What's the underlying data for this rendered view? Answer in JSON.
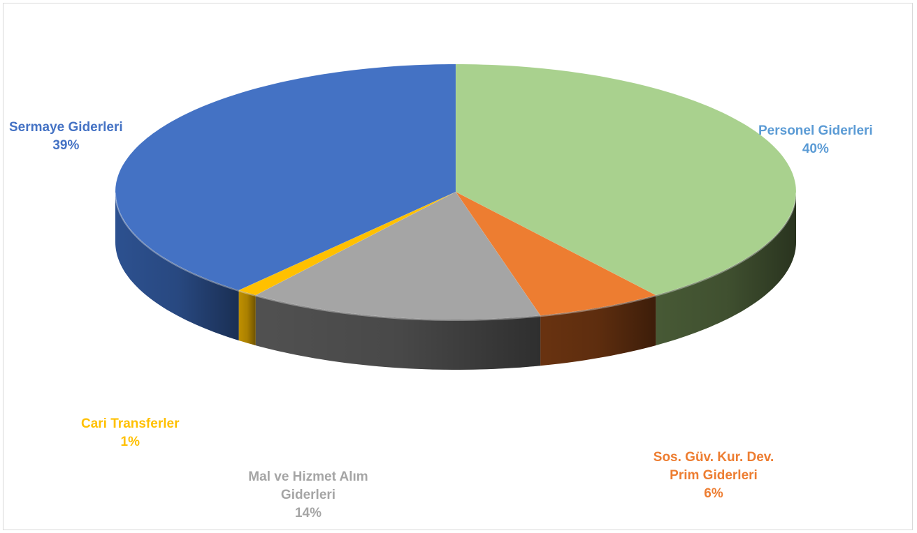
{
  "chart_data": {
    "type": "pie",
    "style": "3d",
    "title": "",
    "slices": [
      {
        "label": "Personel Giderleri",
        "value": 40,
        "pct": "40%",
        "color": "#a9d18e",
        "side": "#4b5e38",
        "label_color": "#5b9bd5"
      },
      {
        "label": "Sos. Güv. Kur. Dev. Prim Giderleri",
        "value": 6,
        "pct": "6%",
        "color": "#ed7d31",
        "side": "#6e3511",
        "label_color": "#ed7d31"
      },
      {
        "label": "Mal ve Hizmet Alım Giderleri",
        "value": 14,
        "pct": "14%",
        "color": "#a5a5a5",
        "side": "#555555",
        "label_color": "#a5a5a5"
      },
      {
        "label": "Cari Transferler",
        "value": 1,
        "pct": "1%",
        "color": "#ffc000",
        "side": "#c99700",
        "label_color": "#ffc000"
      },
      {
        "label": "Sermaye Giderleri",
        "value": 39,
        "pct": "39%",
        "color": "#4472c4",
        "side": "#2f5597",
        "label_color": "#4472c4"
      }
    ]
  }
}
